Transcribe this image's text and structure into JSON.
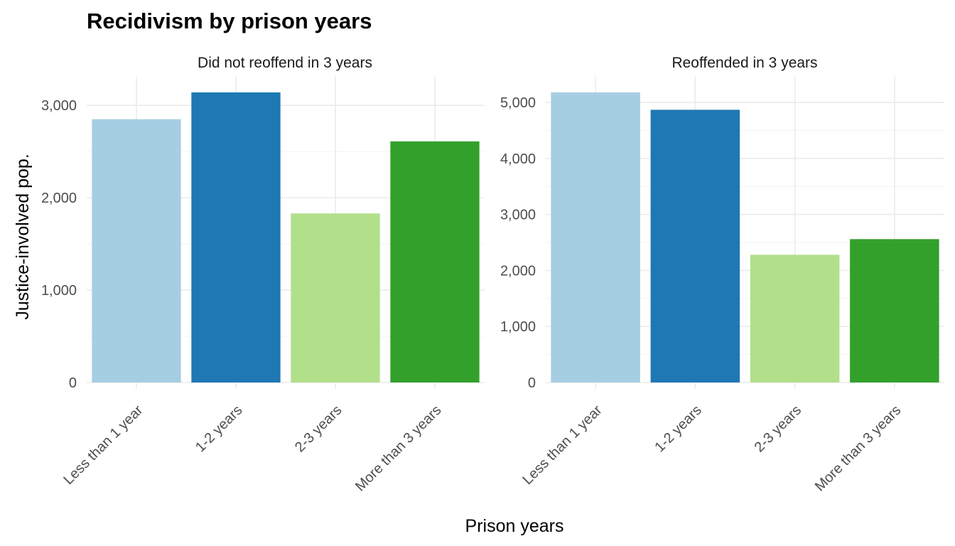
{
  "chart_data": {
    "type": "bar",
    "title": "Recidivism by prison years",
    "xlabel": "Prison years",
    "ylabel": "Justice-involved pop.",
    "categories": [
      "Less than 1 year",
      "1-2 years",
      "2-3 years",
      "More than 3 years"
    ],
    "colors": [
      "#a6cee3",
      "#1f78b4",
      "#b2df8a",
      "#33a02c"
    ],
    "grid": true,
    "legend": "none",
    "facets": [
      {
        "label": "Did not reoffend in 3 years",
        "values": [
          2850,
          3140,
          1830,
          2610
        ],
        "ylim": [
          0,
          3140
        ],
        "yticks": [
          0,
          1000,
          2000,
          3000
        ],
        "ytick_labels": [
          "0",
          "1,000",
          "2,000",
          "3,000"
        ]
      },
      {
        "label": "Reoffended in 3 years",
        "values": [
          5180,
          4870,
          2280,
          2560
        ],
        "ylim": [
          0,
          5180
        ],
        "yticks": [
          0,
          1000,
          2000,
          3000,
          4000,
          5000
        ],
        "ytick_labels": [
          "0",
          "1,000",
          "2,000",
          "3,000",
          "4,000",
          "5,000"
        ]
      }
    ]
  }
}
